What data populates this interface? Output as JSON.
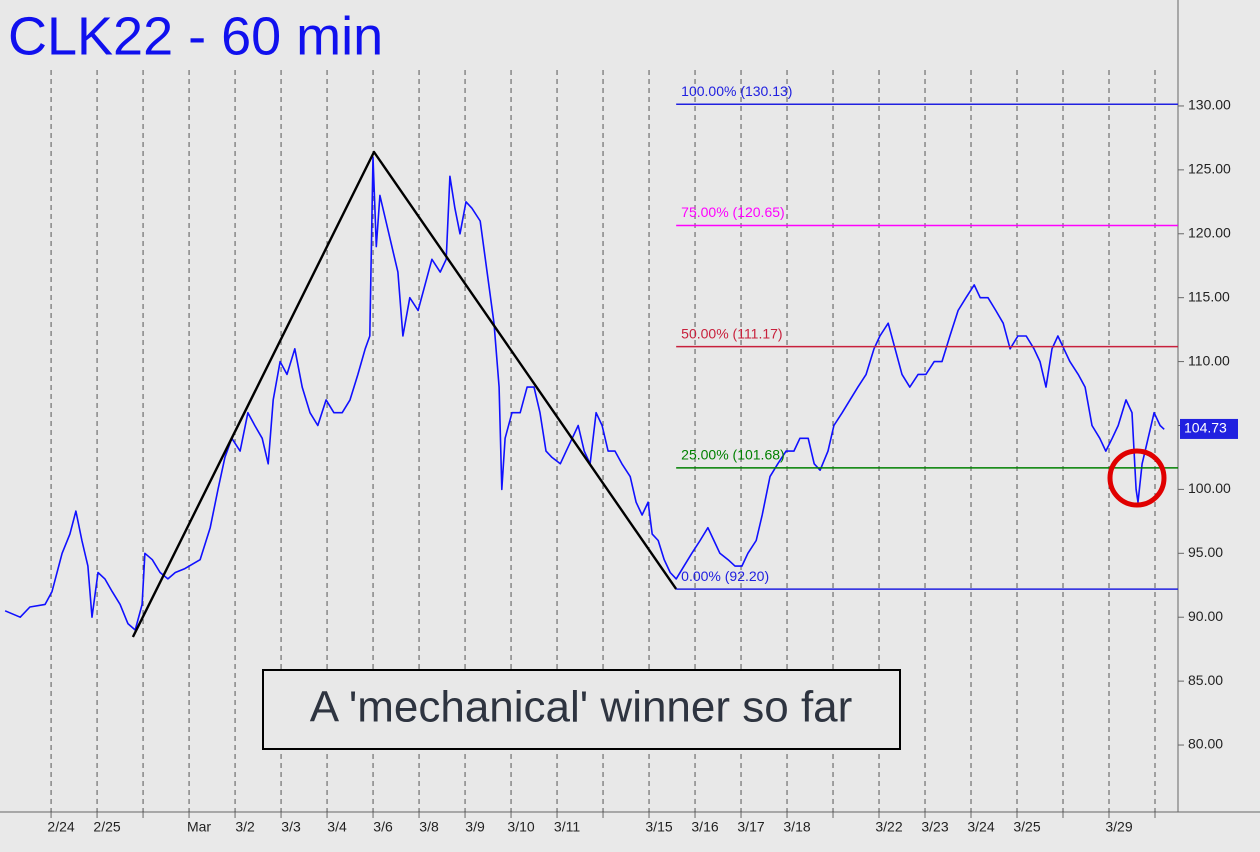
{
  "chart_data": {
    "type": "line",
    "title": "CLK22 - 60 min",
    "annotation": "A 'mechanical' winner so far",
    "xlim": [
      -1.11,
      24.5
    ],
    "ylim": [
      74.76,
      138.29
    ],
    "yticks": [
      {
        "value": 80,
        "label": "80.00"
      },
      {
        "value": 85,
        "label": "85.00"
      },
      {
        "value": 90,
        "label": "90.00"
      },
      {
        "value": 95,
        "label": "95.00"
      },
      {
        "value": 100,
        "label": "100.00"
      },
      {
        "value": 105,
        "label": "105.00"
      },
      {
        "value": 110,
        "label": "110.00"
      },
      {
        "value": 115,
        "label": "115.00"
      },
      {
        "value": 120,
        "label": "120.00"
      },
      {
        "value": 125,
        "label": "125.00"
      },
      {
        "value": 130,
        "label": "130.00"
      }
    ],
    "xticks": [
      {
        "value": 0,
        "label": "2/24"
      },
      {
        "value": 1,
        "label": "2/25"
      },
      {
        "value": 2,
        "label": null
      },
      {
        "value": 3,
        "label": "Mar"
      },
      {
        "value": 4,
        "label": "3/2"
      },
      {
        "value": 5,
        "label": "3/3"
      },
      {
        "value": 6,
        "label": "3/4"
      },
      {
        "value": 7,
        "label": "3/6"
      },
      {
        "value": 8,
        "label": "3/8"
      },
      {
        "value": 9,
        "label": "3/9"
      },
      {
        "value": 10,
        "label": "3/10"
      },
      {
        "value": 11,
        "label": "3/11"
      },
      {
        "value": 12,
        "label": null
      },
      {
        "value": 13,
        "label": "3/15"
      },
      {
        "value": 14,
        "label": "3/16"
      },
      {
        "value": 15,
        "label": "3/17"
      },
      {
        "value": 16,
        "label": "3/18"
      },
      {
        "value": 17,
        "label": null
      },
      {
        "value": 18,
        "label": "3/22"
      },
      {
        "value": 19,
        "label": "3/23"
      },
      {
        "value": 20,
        "label": "3/24"
      },
      {
        "value": 21,
        "label": "3/25"
      },
      {
        "value": 22,
        "label": null
      },
      {
        "value": 23,
        "label": "3/29"
      },
      {
        "value": 24,
        "label": null
      }
    ],
    "grid": true,
    "series": [
      {
        "color": "#1010ff",
        "x": [
          -1.0,
          -0.67,
          -0.46,
          -0.13,
          0.02,
          0.24,
          0.41,
          0.54,
          0.67,
          0.8,
          0.89,
          1.02,
          1.17,
          1.33,
          1.5,
          1.67,
          1.83,
          1.98,
          2.04,
          2.2,
          2.37,
          2.54,
          2.7,
          2.91,
          3.24,
          3.46,
          3.63,
          3.78,
          3.93,
          4.11,
          4.28,
          4.43,
          4.59,
          4.72,
          4.83,
          4.98,
          5.13,
          5.3,
          5.46,
          5.63,
          5.8,
          5.98,
          6.15,
          6.33,
          6.5,
          6.67,
          6.83,
          6.93,
          7.0,
          7.07,
          7.15,
          7.28,
          7.41,
          7.54,
          7.65,
          7.8,
          7.98,
          8.13,
          8.28,
          8.46,
          8.59,
          8.67,
          8.78,
          8.89,
          9.02,
          9.15,
          9.33,
          9.48,
          9.63,
          9.74,
          9.8,
          9.87,
          10.02,
          10.2,
          10.35,
          10.5,
          10.63,
          10.76,
          10.89,
          11.07,
          11.2,
          11.33,
          11.46,
          11.59,
          11.72,
          11.85,
          11.98,
          12.11,
          12.26,
          12.41,
          12.59,
          12.72,
          12.85,
          12.98,
          13.07,
          13.2,
          13.33,
          13.46,
          13.59,
          13.76,
          13.93,
          14.11,
          14.28,
          14.41,
          14.54,
          14.72,
          14.87,
          15.02,
          15.15,
          15.33,
          15.46,
          15.63,
          15.8,
          15.98,
          16.15,
          16.28,
          16.46,
          16.59,
          16.72,
          16.89,
          17.02,
          17.2,
          17.37,
          17.54,
          17.72,
          17.89,
          18.02,
          18.2,
          18.35,
          18.5,
          18.67,
          18.85,
          19.02,
          19.2,
          19.37,
          19.54,
          19.72,
          19.89,
          20.07,
          20.2,
          20.37,
          20.54,
          20.7,
          20.85,
          21.02,
          21.2,
          21.37,
          21.5,
          21.63,
          21.76,
          21.89,
          22.02,
          22.15,
          22.33,
          22.48,
          22.63,
          22.8,
          22.93,
          23.07,
          23.2,
          23.37,
          23.5,
          23.59,
          23.63,
          23.72,
          23.85,
          23.98,
          24.11,
          24.2
        ],
        "values": [
          90.5,
          90,
          90.8,
          91,
          92,
          95,
          96.5,
          98.3,
          96,
          94,
          90,
          93.5,
          93,
          92,
          91,
          89.5,
          89,
          91,
          95,
          94.5,
          93.5,
          93,
          93.5,
          93.8,
          94.5,
          97,
          100,
          102.5,
          104,
          103,
          106,
          105,
          104,
          102,
          107,
          110,
          109,
          111,
          108,
          106,
          105,
          107,
          106,
          106,
          107,
          109,
          111,
          112,
          126,
          119,
          123,
          121,
          119,
          117,
          112,
          115,
          114,
          116,
          118,
          117,
          118,
          124.5,
          122,
          120,
          122.5,
          122,
          121,
          117,
          113,
          108,
          100,
          104,
          106,
          106,
          108,
          108,
          106,
          103,
          102.5,
          102,
          103,
          104,
          105,
          103,
          102,
          106,
          105,
          103,
          103,
          102,
          101,
          99,
          98,
          99,
          96.5,
          96,
          94.5,
          93.5,
          93,
          94,
          95,
          96,
          97,
          96,
          95,
          94.5,
          94,
          94,
          95,
          96,
          98,
          101,
          102,
          103,
          103,
          104,
          104,
          102,
          101.5,
          103,
          105,
          106,
          107,
          108,
          109,
          111,
          112,
          113,
          111,
          109,
          108,
          109,
          109,
          110,
          110,
          112,
          114,
          115,
          116,
          115,
          115,
          114,
          113,
          111,
          112,
          112,
          111,
          110,
          108,
          111,
          112,
          111,
          110,
          109,
          108,
          105,
          104,
          103,
          104,
          105,
          107,
          106,
          100,
          99,
          102,
          104,
          106,
          105,
          104.7
        ]
      }
    ],
    "pattern": {
      "color": "#000000",
      "x": [
        1.78,
        7.02,
        13.59
      ],
      "values": [
        88.45,
        126.4,
        92.2
      ]
    },
    "levels": [
      {
        "label": "100.00% (130.13)",
        "value": 130.13,
        "color": "#2020e0"
      },
      {
        "label": "75.00% (120.65)",
        "value": 120.65,
        "color": "#ff00ff"
      },
      {
        "label": "50.00% (111.17)",
        "value": 111.17,
        "color": "#c8203c"
      },
      {
        "label": "25.00% (101.68)",
        "value": 101.68,
        "color": "#008000"
      },
      {
        "label": "0.00% (92.20)",
        "value": 92.2,
        "color": "#2020e0"
      }
    ],
    "last_price": {
      "value": 104.73,
      "label": "104.73",
      "color": "#2020e0"
    }
  }
}
